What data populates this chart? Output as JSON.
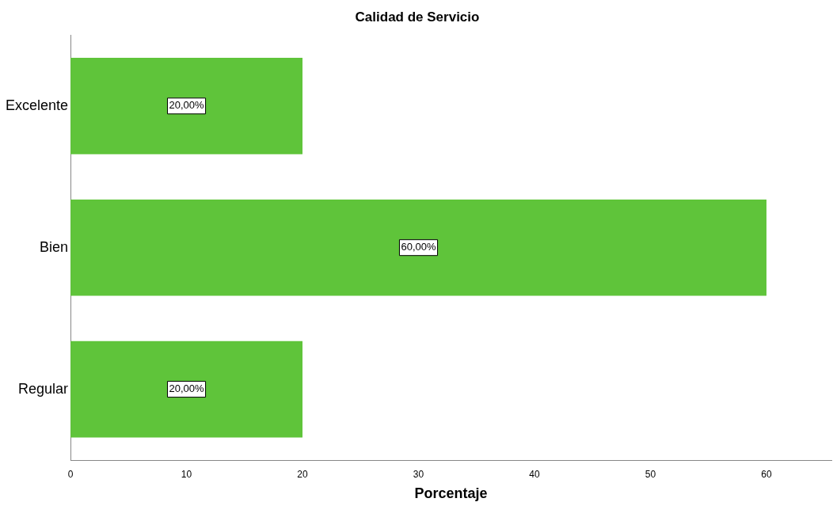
{
  "chart_data": {
    "type": "bar",
    "orientation": "horizontal",
    "title": "Calidad de Servicio",
    "xlabel": "Porcentaje",
    "categories": [
      "Excelente",
      "Bien",
      "Regular"
    ],
    "values": [
      20,
      60,
      20
    ],
    "value_labels": [
      "20,00%",
      "60,00%",
      "20,00%"
    ],
    "color": "#5fc43a",
    "xlim": [
      0,
      65.6
    ],
    "xticks": [
      0,
      10,
      20,
      30,
      40,
      50,
      60
    ],
    "grid": false,
    "legend": false
  }
}
